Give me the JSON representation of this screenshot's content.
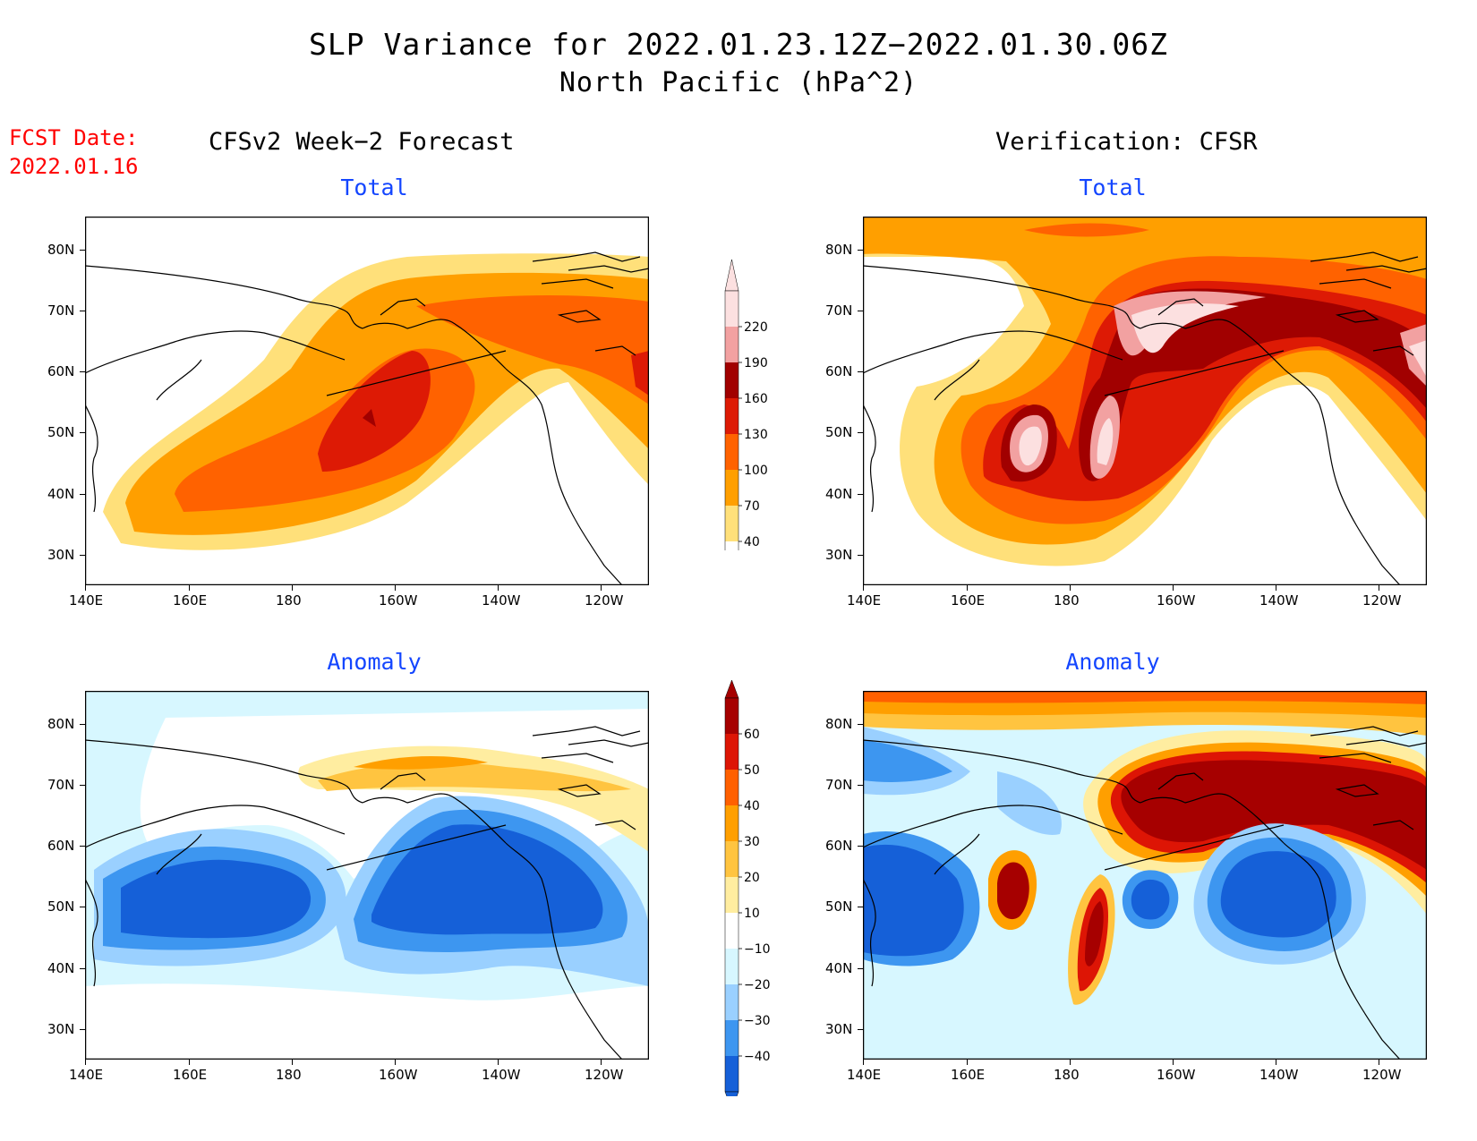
{
  "title": {
    "line1": "SLP Variance for 2022.01.23.12Z−2022.01.30.06Z",
    "line2": "North Pacific (hPa^2)"
  },
  "fcst_date": {
    "label": "FCST Date:",
    "value": "2022.01.16"
  },
  "columns": {
    "left": "CFSv2 Week−2 Forecast",
    "right": "Verification: CFSR"
  },
  "panels": {
    "forecast_total": {
      "subtitle": "Total"
    },
    "verification_total": {
      "subtitle": "Total"
    },
    "forecast_anomaly": {
      "subtitle": "Anomaly"
    },
    "verification_anomaly": {
      "subtitle": "Anomaly"
    }
  },
  "axes": {
    "lat_labels": [
      "80N",
      "70N",
      "60N",
      "50N",
      "40N",
      "30N"
    ],
    "lon_labels": [
      "140E",
      "160E",
      "180",
      "160W",
      "140W",
      "120W"
    ]
  },
  "colorbar_total": {
    "labels": [
      "220",
      "190",
      "160",
      "130",
      "100",
      "70",
      "40"
    ],
    "colors": [
      "#fce0e0",
      "#f2a1a1",
      "#a10000",
      "#dd1a05",
      "#ff6200",
      "#ff9f00",
      "#ffe07a",
      "#ffffff"
    ]
  },
  "colorbar_anomaly": {
    "labels": [
      "60",
      "50",
      "40",
      "30",
      "20",
      "10",
      "−10",
      "−20",
      "−30",
      "−40"
    ],
    "colors": [
      "#a60000",
      "#dd1505",
      "#ff6000",
      "#ff9f00",
      "#ffc440",
      "#ffeda0",
      "#ffffff",
      "#d7f7ff",
      "#9ad0ff",
      "#3d96f0",
      "#1560d8"
    ]
  },
  "chart_data": {
    "type": "heatmap",
    "title": "SLP Variance for 2022.01.23.12Z−2022.01.30.06Z",
    "subtitle": "North Pacific (hPa^2)",
    "lon_range": [
      "140E",
      "110W"
    ],
    "lat_range": [
      25,
      85
    ],
    "total_levels": [
      40,
      70,
      100,
      130,
      160,
      190,
      220
    ],
    "anomaly_levels": [
      -40,
      -30,
      -20,
      -10,
      10,
      20,
      30,
      40,
      50,
      60
    ],
    "panels": [
      "CFSv2 Week−2 Forecast Total",
      "Verification: CFSR Total",
      "CFSv2 Week−2 Forecast Anomaly",
      "Verification: CFSR Anomaly"
    ]
  }
}
